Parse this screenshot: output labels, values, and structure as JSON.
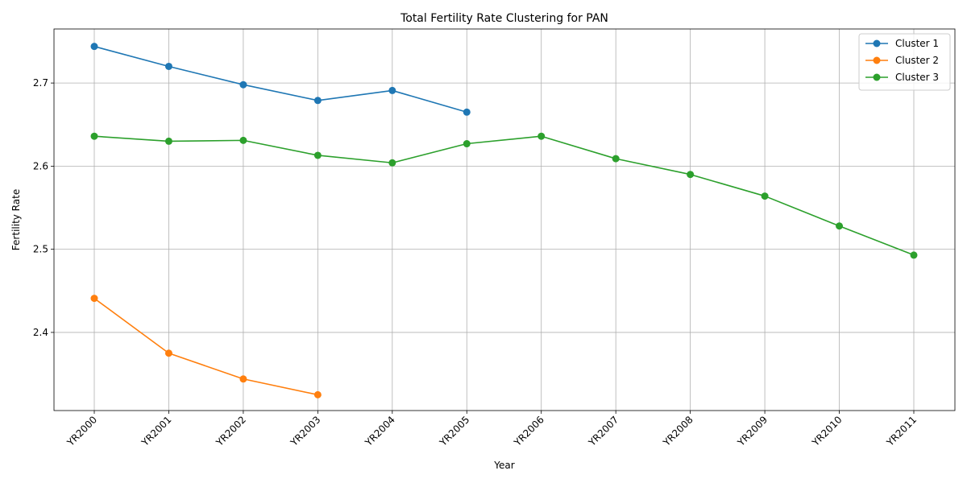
{
  "chart_data": {
    "type": "line",
    "title": "Total Fertility Rate Clustering for PAN",
    "xlabel": "Year",
    "ylabel": "Fertility Rate",
    "categories": [
      "YR2000",
      "YR2001",
      "YR2002",
      "YR2003",
      "YR2004",
      "YR2005",
      "YR2006",
      "YR2007",
      "YR2008",
      "YR2009",
      "YR2010",
      "YR2011"
    ],
    "ylim": [
      2.306,
      2.765
    ],
    "yticks": [
      2.4,
      2.5,
      2.6,
      2.7
    ],
    "grid": true,
    "legend_position": "top-right",
    "series": [
      {
        "name": "Cluster 1",
        "color": "#1f77b4",
        "values": [
          2.744,
          2.72,
          2.698,
          2.679,
          2.691,
          2.665,
          null,
          null,
          null,
          null,
          null,
          null
        ]
      },
      {
        "name": "Cluster 2",
        "color": "#ff7f0e",
        "values": [
          2.441,
          2.375,
          2.344,
          2.325,
          null,
          null,
          null,
          null,
          null,
          null,
          null,
          null
        ]
      },
      {
        "name": "Cluster 3",
        "color": "#2ca02c",
        "values": [
          2.636,
          2.63,
          2.631,
          2.613,
          2.604,
          2.627,
          2.636,
          2.609,
          2.59,
          2.564,
          2.528,
          2.493
        ]
      }
    ]
  }
}
